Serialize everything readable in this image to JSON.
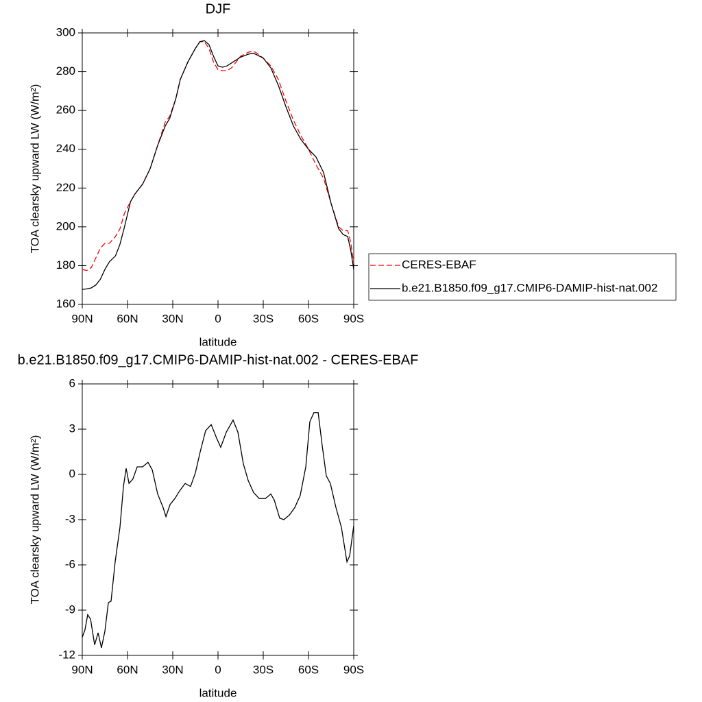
{
  "chart_data": [
    {
      "type": "line",
      "title": "DJF",
      "xlabel": "latitude",
      "ylabel": "TOA clearsky upward LW (W/m²)",
      "x": [
        90,
        87,
        84,
        81,
        78,
        75,
        72,
        68,
        65,
        62,
        58,
        55,
        50,
        45,
        40,
        35,
        32,
        28,
        25,
        20,
        15,
        12,
        9,
        6,
        3,
        0,
        -3,
        -6,
        -9,
        -12,
        -15,
        -20,
        -23,
        -25,
        -30,
        -35,
        -40,
        -45,
        -50,
        -55,
        -60,
        -65,
        -70,
        -75,
        -80,
        -83,
        -86,
        -88,
        -90
      ],
      "series": [
        {
          "name": "CERES-EBAF",
          "color": "#ff0000",
          "dash": true,
          "values": [
            178,
            177.5,
            179,
            184,
            189,
            191.5,
            191.5,
            195,
            199,
            207,
            213,
            217,
            222,
            230,
            242,
            254,
            257,
            266,
            276,
            285,
            292,
            295.5,
            295.5,
            292,
            285,
            281,
            280.5,
            280.5,
            282,
            285,
            288,
            290,
            290.5,
            290,
            287,
            283,
            276,
            265,
            255,
            247,
            240,
            232,
            225,
            212,
            200,
            198,
            198,
            192,
            181
          ]
        },
        {
          "name": "b.e21.B1850.f09_g17.CMIP6-DAMIP-hist-nat.002",
          "color": "#000000",
          "dash": false,
          "values": [
            167.7,
            168,
            168.5,
            170,
            173,
            178,
            182,
            185,
            191,
            200,
            213,
            217,
            222,
            230,
            242,
            252,
            256,
            266,
            276,
            285,
            292,
            295.5,
            296,
            294,
            288,
            283,
            282.3,
            283,
            284.5,
            286,
            287.5,
            289,
            289.5,
            289,
            287,
            282,
            273,
            262,
            252,
            245,
            240,
            236,
            228,
            212,
            199,
            196,
            195,
            188,
            178
          ]
        }
      ],
      "xlim": [
        90,
        -90
      ],
      "xticks": [
        {
          "value": 90,
          "label": "90N"
        },
        {
          "value": 60,
          "label": "60N"
        },
        {
          "value": 30,
          "label": "30N"
        },
        0,
        {
          "value": -30,
          "label": "30S"
        },
        {
          "value": -60,
          "label": "60S"
        },
        {
          "value": -90,
          "label": "90S"
        }
      ],
      "ylim": [
        160,
        300
      ],
      "yticks": [
        160,
        180,
        200,
        220,
        240,
        260,
        280,
        300
      ],
      "legend": "right"
    },
    {
      "type": "line",
      "title": "b.e21.B1850.f09_g17.CMIP6-DAMIP-hist-nat.002 - CERES-EBAF",
      "xlabel": "latitude",
      "ylabel": "TOA clearsky upward LW (W/m²)",
      "x": [
        90,
        88.2,
        86.4,
        84.5,
        81.8,
        79.5,
        77.3,
        75,
        72.7,
        70.9,
        68.2,
        65,
        62.7,
        60.9,
        59,
        56.4,
        53.6,
        50,
        46.4,
        43.6,
        40,
        36.4,
        34.5,
        31.8,
        28.6,
        25.5,
        21.8,
        18.2,
        15,
        11.8,
        8.2,
        4.5,
        0.9,
        -1.8,
        -5.5,
        -10,
        -13.2,
        -16.8,
        -20,
        -23.6,
        -27.3,
        -31.4,
        -35,
        -37.3,
        -40.9,
        -43.6,
        -47.3,
        -50.9,
        -54.5,
        -58.2,
        -60.9,
        -63.6,
        -66.4,
        -69.1,
        -71.8,
        -74.5,
        -78.2,
        -81.8,
        -85.5,
        -87.3,
        -90
      ],
      "series": [
        {
          "color": "#000000",
          "values": [
            -10.8,
            -10.3,
            -9.3,
            -9.6,
            -11.3,
            -10.5,
            -11.5,
            -10.4,
            -8.5,
            -8.4,
            -5.8,
            -3.5,
            -0.8,
            0.4,
            -0.6,
            -0.3,
            0.5,
            0.5,
            0.8,
            0.3,
            -1.3,
            -2.2,
            -2.8,
            -2,
            -1.6,
            -1.1,
            -0.6,
            -0.8,
            0.1,
            1.5,
            2.9,
            3.3,
            2.4,
            1.8,
            2.8,
            3.6,
            2.8,
            0.7,
            -0.4,
            -1.2,
            -1.6,
            -1.6,
            -1.3,
            -1.7,
            -2.9,
            -3,
            -2.7,
            -2.2,
            -1.4,
            0.5,
            3.5,
            4.1,
            4.1,
            1.9,
            -0.1,
            -0.6,
            -2.2,
            -3.5,
            -5.8,
            -5.4,
            -3.4
          ]
        }
      ],
      "xlim": [
        90,
        -90
      ],
      "xticks": [
        {
          "value": 90,
          "label": "90N"
        },
        {
          "value": 60,
          "label": "60N"
        },
        {
          "value": 30,
          "label": "30N"
        },
        0,
        {
          "value": -30,
          "label": "30S"
        },
        {
          "value": -60,
          "label": "60S"
        },
        {
          "value": -90,
          "label": "90S"
        }
      ],
      "ylim": [
        -12,
        6
      ],
      "yticks": [
        -12,
        -9,
        -6,
        -3,
        0,
        3,
        6
      ]
    }
  ]
}
